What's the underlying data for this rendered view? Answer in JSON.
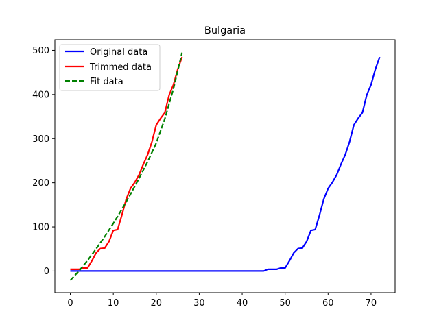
{
  "chart_data": {
    "type": "line",
    "title": "Bulgaria",
    "xlabel": "",
    "ylabel": "",
    "xlim": [
      -3.6,
      75.6
    ],
    "ylim": [
      -49,
      524
    ],
    "xticks": [
      0,
      10,
      20,
      30,
      40,
      50,
      60,
      70
    ],
    "yticks": [
      0,
      100,
      200,
      300,
      400,
      500
    ],
    "grid": false,
    "legend_position": "top-left",
    "series": [
      {
        "name": "Original data",
        "color": "#0000ff",
        "style": "solid",
        "x": [
          0,
          45,
          46,
          47,
          48,
          49,
          50,
          51,
          52,
          53,
          54,
          55,
          56,
          57,
          58,
          59,
          60,
          61,
          62,
          63,
          64,
          65,
          66,
          67,
          68,
          69,
          70,
          71,
          72
        ],
        "y": [
          0,
          0,
          4,
          4,
          4,
          7,
          7,
          23,
          41,
          51,
          52,
          67,
          92,
          94,
          127,
          163,
          187,
          201,
          218,
          242,
          264,
          293,
          331,
          346,
          359,
          399,
          422,
          457,
          485
        ]
      },
      {
        "name": "Trimmed data",
        "color": "#ff0000",
        "style": "solid",
        "x": [
          0,
          1,
          2,
          3,
          4,
          5,
          6,
          7,
          8,
          9,
          10,
          11,
          12,
          13,
          14,
          15,
          16,
          17,
          18,
          19,
          20,
          21,
          22,
          23,
          24,
          25,
          26
        ],
        "y": [
          4,
          4,
          4,
          7,
          7,
          23,
          41,
          51,
          52,
          67,
          92,
          94,
          127,
          163,
          187,
          201,
          218,
          242,
          264,
          293,
          331,
          346,
          359,
          399,
          422,
          457,
          485
        ]
      },
      {
        "name": "Fit data",
        "color": "#008000",
        "style": "dashed",
        "x": [
          0,
          2,
          4,
          6,
          8,
          10,
          12,
          14,
          16,
          18,
          20,
          22,
          24,
          26
        ],
        "y": [
          -21,
          0,
          24,
          50,
          78,
          108,
          140,
          174,
          210,
          248,
          290,
          345,
          413,
          495
        ]
      }
    ]
  }
}
